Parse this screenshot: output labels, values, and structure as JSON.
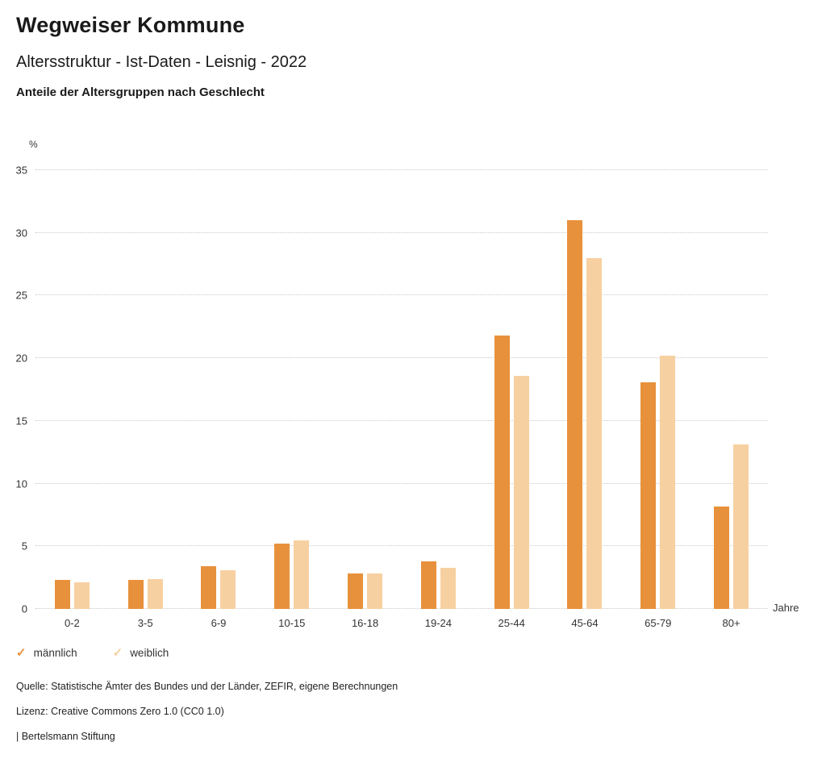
{
  "header": {
    "title": "Wegweiser Kommune",
    "subtitle": "Altersstruktur - Ist-Daten - Leisnig - 2022",
    "section_title": "Anteile der Altersgruppen nach Geschlecht"
  },
  "chart_data": {
    "type": "bar",
    "categories": [
      "0-2",
      "3-5",
      "6-9",
      "10-15",
      "16-18",
      "19-24",
      "25-44",
      "45-64",
      "65-79",
      "80+"
    ],
    "series": [
      {
        "name": "männlich",
        "color": "#E8913C",
        "values": [
          2.3,
          2.3,
          3.4,
          5.2,
          2.8,
          3.8,
          21.8,
          31.0,
          18.1,
          8.2
        ]
      },
      {
        "name": "weiblich",
        "color": "#F7D0A1",
        "values": [
          2.1,
          2.4,
          3.1,
          5.5,
          2.8,
          3.3,
          18.6,
          28.0,
          20.2,
          13.1
        ]
      }
    ],
    "title": "Anteile der Altersgruppen nach Geschlecht",
    "xlabel": "Jahre",
    "ylabel": "%",
    "ylim": [
      0,
      35
    ],
    "yticks": [
      0,
      5,
      10,
      15,
      20,
      25,
      30,
      35
    ],
    "grid": true,
    "legend_position": "bottom",
    "legend_check_glyph": "✓"
  },
  "footer": {
    "source": "Quelle: Statistische Ämter des Bundes und der Länder, ZEFIR, eigene Berechnungen",
    "license": "Lizenz: Creative Commons Zero 1.0 (CC0 1.0)",
    "attribution": "| Bertelsmann Stiftung"
  }
}
